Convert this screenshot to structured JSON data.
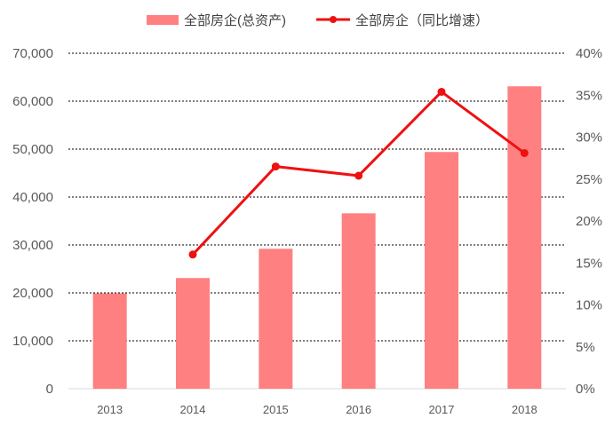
{
  "chart_data": {
    "type": "bar+line",
    "categories": [
      "2013",
      "2014",
      "2015",
      "2016",
      "2017",
      "2018"
    ],
    "series": [
      {
        "name": "全部房企(总资产)",
        "type": "bar",
        "axis": "left",
        "values": [
          19900,
          23100,
          29200,
          36600,
          49400,
          63100
        ]
      },
      {
        "name": "全部房企（同比增速）",
        "type": "line",
        "axis": "right",
        "values": [
          null,
          16.0,
          26.5,
          25.4,
          35.4,
          28.1
        ]
      }
    ],
    "ylim_left": [
      0,
      70000
    ],
    "yticks_left": [
      "0",
      "10,000",
      "20,000",
      "30,000",
      "40,000",
      "50,000",
      "60,000",
      "70,000"
    ],
    "ylim_right": [
      0,
      40
    ],
    "yticks_right": [
      "0%",
      "5%",
      "10%",
      "15%",
      "20%",
      "25%",
      "30%",
      "35%",
      "40%"
    ],
    "grid": "horizontal-dashed",
    "legend_position": "top",
    "colors": {
      "bar": "#ff8080",
      "line": "#ee1111",
      "grid": "#000000",
      "axis": "#d9d9d9",
      "text": "#595959"
    }
  }
}
